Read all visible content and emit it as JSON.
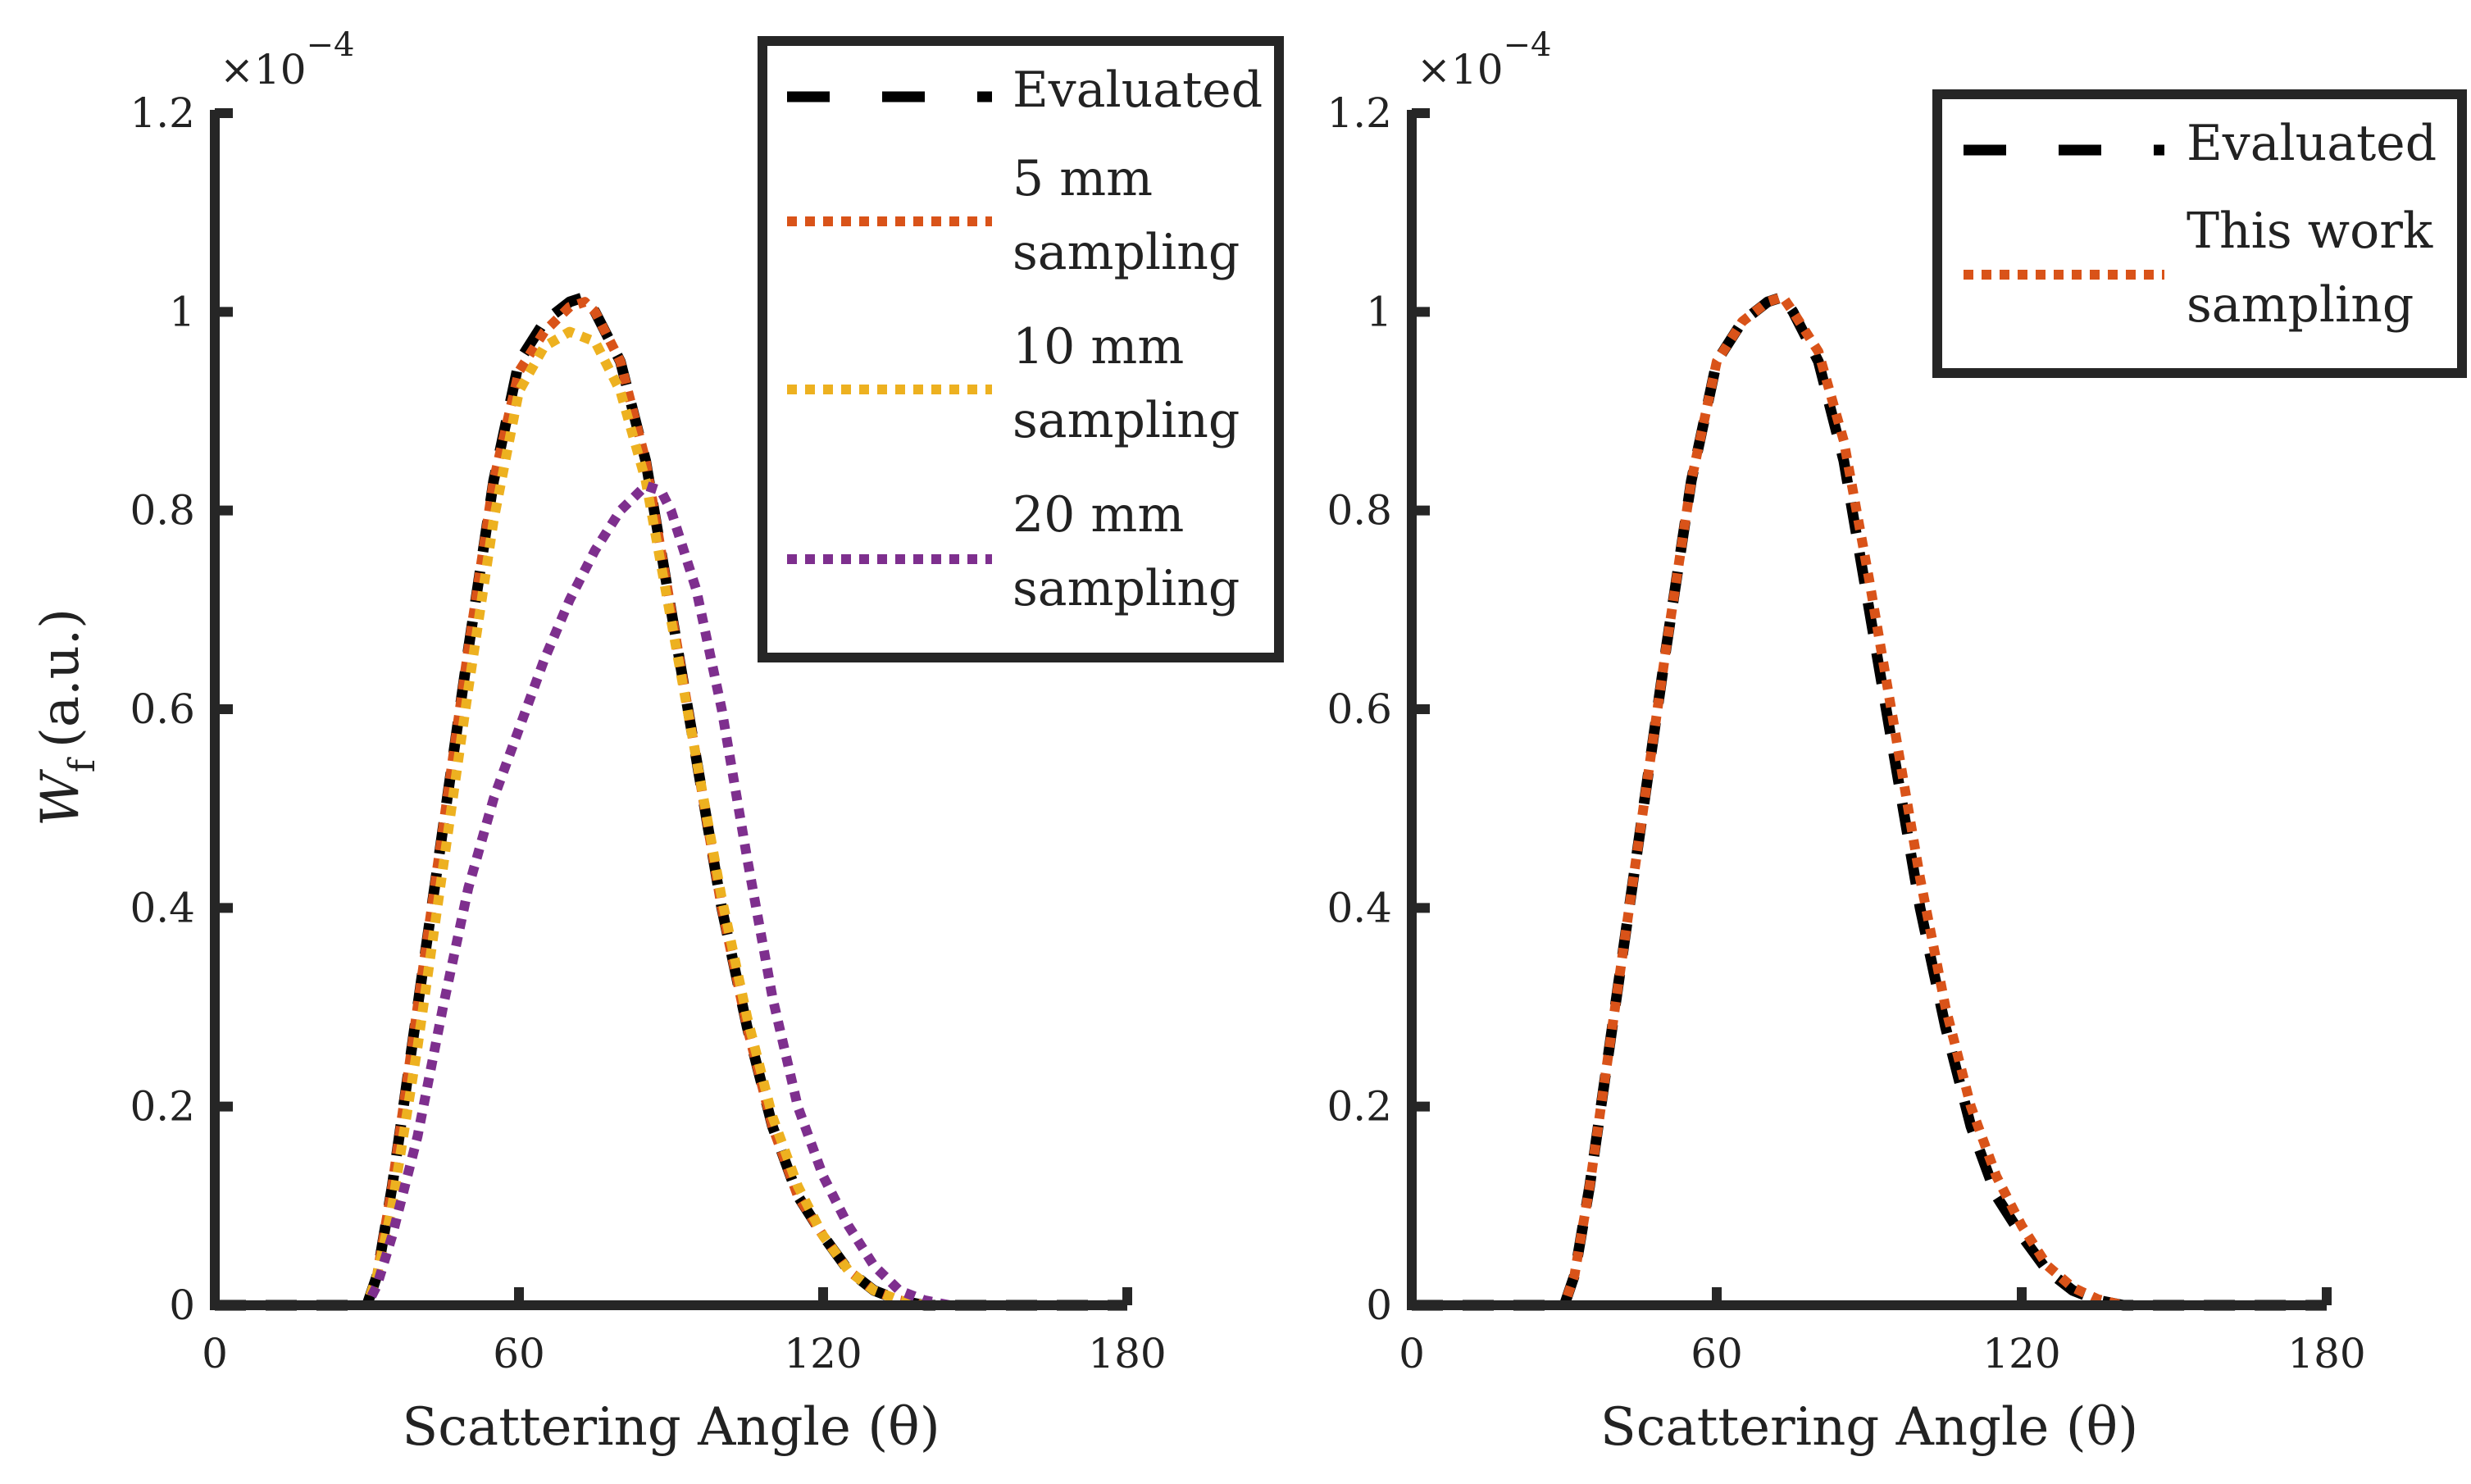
{
  "chart_data": [
    {
      "type": "line",
      "panel": "left",
      "xlabel": "Scattering Angle (θ)",
      "ylabel": "W",
      "ylabel_sub": "f",
      "ylabel_unit": "(a.u.)",
      "y_exponent_base": "×10",
      "y_exponent": "−4",
      "xlim": [
        0,
        180
      ],
      "ylim": [
        0,
        1.2
      ],
      "xticks": [
        0,
        60,
        120,
        180
      ],
      "xtick_labels": [
        "0",
        "60",
        "120",
        "180"
      ],
      "yticks": [
        0,
        0.2,
        0.4,
        0.6,
        0.8,
        1.0,
        1.2
      ],
      "ytick_labels": [
        "0",
        "0.2",
        "0.4",
        "0.6",
        "0.8",
        "1",
        "1.2"
      ],
      "grid": false,
      "legend_position": "top-right",
      "series": [
        {
          "name": "Evaluated",
          "legend_lines": [
            "Evaluated"
          ],
          "color": "#000000",
          "style": "dashed",
          "x": [
            0,
            10,
            20,
            30,
            32,
            35,
            40,
            45,
            50,
            55,
            60,
            65,
            70,
            73,
            75,
            80,
            85,
            90,
            95,
            100,
            105,
            110,
            115,
            120,
            125,
            130,
            135,
            140,
            145,
            150,
            160,
            170,
            180
          ],
          "y": [
            0,
            0,
            0,
            0,
            0.03,
            0.12,
            0.3,
            0.48,
            0.66,
            0.83,
            0.95,
            0.99,
            1.01,
            1.015,
            1.0,
            0.95,
            0.85,
            0.7,
            0.55,
            0.4,
            0.28,
            0.18,
            0.11,
            0.07,
            0.035,
            0.015,
            0.005,
            0,
            0,
            0,
            0,
            0,
            0
          ]
        },
        {
          "name": "5 mm sampling",
          "legend_lines": [
            "5 mm",
            "sampling"
          ],
          "color": "#D95319",
          "style": "dotted",
          "x": [
            0,
            10,
            20,
            30,
            32,
            35,
            40,
            45,
            50,
            55,
            60,
            65,
            70,
            73,
            75,
            80,
            85,
            90,
            95,
            100,
            105,
            110,
            115,
            120,
            125,
            130,
            135,
            140,
            145,
            150,
            160,
            170,
            180
          ],
          "y": [
            0,
            0,
            0,
            0,
            0.03,
            0.12,
            0.3,
            0.48,
            0.66,
            0.83,
            0.94,
            0.98,
            1.005,
            1.01,
            1.0,
            0.95,
            0.85,
            0.7,
            0.55,
            0.4,
            0.28,
            0.18,
            0.11,
            0.07,
            0.035,
            0.015,
            0.005,
            0,
            0,
            0,
            0,
            0,
            0
          ]
        },
        {
          "name": "10 mm sampling",
          "legend_lines": [
            "10 mm",
            " sampling"
          ],
          "color": "#EDB120",
          "style": "dotted",
          "x": [
            0,
            10,
            20,
            30,
            32,
            35,
            40,
            45,
            50,
            55,
            60,
            65,
            70,
            75,
            80,
            85,
            90,
            95,
            100,
            105,
            110,
            115,
            120,
            125,
            130,
            135,
            140,
            145,
            150,
            160,
            170,
            180
          ],
          "y": [
            0,
            0,
            0,
            0,
            0.03,
            0.1,
            0.26,
            0.44,
            0.62,
            0.79,
            0.92,
            0.965,
            0.98,
            0.97,
            0.92,
            0.83,
            0.69,
            0.55,
            0.41,
            0.29,
            0.19,
            0.12,
            0.07,
            0.035,
            0.015,
            0.005,
            0,
            0,
            0,
            0,
            0,
            0
          ]
        },
        {
          "name": "20 mm sampling",
          "legend_lines": [
            "20 mm",
            "sampling"
          ],
          "color": "#7E2F8E",
          "style": "dotted",
          "x": [
            0,
            10,
            20,
            30,
            32,
            35,
            40,
            45,
            50,
            55,
            60,
            65,
            70,
            75,
            80,
            85,
            88,
            90,
            95,
            100,
            105,
            110,
            115,
            120,
            125,
            130,
            135,
            140,
            145,
            150,
            160,
            170,
            180
          ],
          "y": [
            0,
            0,
            0,
            0,
            0.02,
            0.07,
            0.17,
            0.3,
            0.42,
            0.51,
            0.58,
            0.65,
            0.71,
            0.76,
            0.8,
            0.825,
            0.82,
            0.8,
            0.72,
            0.6,
            0.45,
            0.31,
            0.2,
            0.13,
            0.08,
            0.04,
            0.015,
            0.005,
            0,
            0,
            0,
            0,
            0
          ]
        }
      ]
    },
    {
      "type": "line",
      "panel": "right",
      "xlabel": "Scattering Angle (θ)",
      "y_exponent_base": "×10",
      "y_exponent": "−4",
      "xlim": [
        0,
        180
      ],
      "ylim": [
        0,
        1.2
      ],
      "xticks": [
        0,
        60,
        120,
        180
      ],
      "xtick_labels": [
        "0",
        "60",
        "120",
        "180"
      ],
      "yticks": [
        0,
        0.2,
        0.4,
        0.6,
        0.8,
        1.0,
        1.2
      ],
      "ytick_labels": [
        "0",
        "0.2",
        "0.4",
        "0.6",
        "0.8",
        "1",
        "1.2"
      ],
      "grid": false,
      "legend_position": "top-right",
      "series": [
        {
          "name": "Evaluated",
          "legend_lines": [
            "Evaluated"
          ],
          "color": "#000000",
          "style": "dashed",
          "x": [
            0,
            10,
            20,
            30,
            32,
            35,
            40,
            45,
            50,
            55,
            60,
            65,
            70,
            73,
            75,
            80,
            85,
            90,
            95,
            100,
            105,
            110,
            115,
            120,
            125,
            130,
            135,
            140,
            145,
            150,
            160,
            170,
            180
          ],
          "y": [
            0,
            0,
            0,
            0,
            0.03,
            0.12,
            0.3,
            0.48,
            0.66,
            0.83,
            0.95,
            0.99,
            1.01,
            1.015,
            1.0,
            0.95,
            0.85,
            0.7,
            0.55,
            0.4,
            0.28,
            0.18,
            0.11,
            0.07,
            0.035,
            0.015,
            0.005,
            0,
            0,
            0,
            0,
            0,
            0
          ]
        },
        {
          "name": "This work sampling",
          "legend_lines": [
            "This work",
            "sampling"
          ],
          "color": "#D95319",
          "style": "dotted",
          "x": [
            0,
            10,
            20,
            30,
            32,
            35,
            40,
            45,
            50,
            55,
            60,
            65,
            70,
            73,
            75,
            80,
            85,
            90,
            95,
            100,
            105,
            110,
            115,
            120,
            125,
            130,
            135,
            140,
            145,
            150,
            160,
            170,
            180
          ],
          "y": [
            0,
            0,
            0,
            0,
            0.03,
            0.12,
            0.3,
            0.48,
            0.66,
            0.83,
            0.95,
            0.99,
            1.01,
            1.015,
            1.0,
            0.96,
            0.87,
            0.73,
            0.58,
            0.43,
            0.3,
            0.2,
            0.13,
            0.08,
            0.04,
            0.018,
            0.006,
            0,
            0,
            0,
            0,
            0,
            0
          ]
        }
      ]
    }
  ]
}
